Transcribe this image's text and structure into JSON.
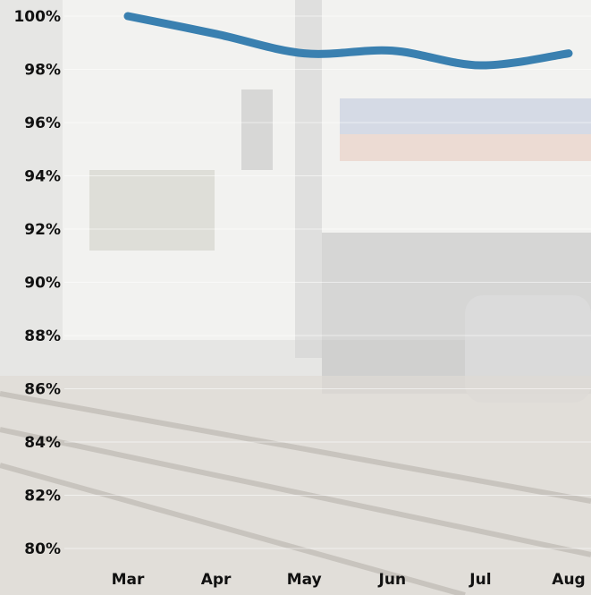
{
  "chart_data": {
    "type": "line",
    "categories": [
      "Mar",
      "Apr",
      "May",
      "Jun",
      "Jul",
      "Aug"
    ],
    "series": [
      {
        "color": "#3a80b0",
        "values": [
          100,
          99.33,
          98.6,
          98.7,
          98.15,
          98.6
        ]
      }
    ],
    "ylim": [
      80,
      100
    ],
    "yticks": [
      {
        "value": 80,
        "label": "80%"
      },
      {
        "value": 82,
        "label": "82%"
      },
      {
        "value": 84,
        "label": "84%"
      },
      {
        "value": 86,
        "label": "86%"
      },
      {
        "value": 88,
        "label": "88%"
      },
      {
        "value": 90,
        "label": "90%"
      },
      {
        "value": 92,
        "label": "92%"
      },
      {
        "value": 94,
        "label": "94%"
      },
      {
        "value": 96,
        "label": "96%"
      },
      {
        "value": 98,
        "label": "98%"
      },
      {
        "value": 100,
        "label": "100%"
      }
    ],
    "grid": true
  }
}
